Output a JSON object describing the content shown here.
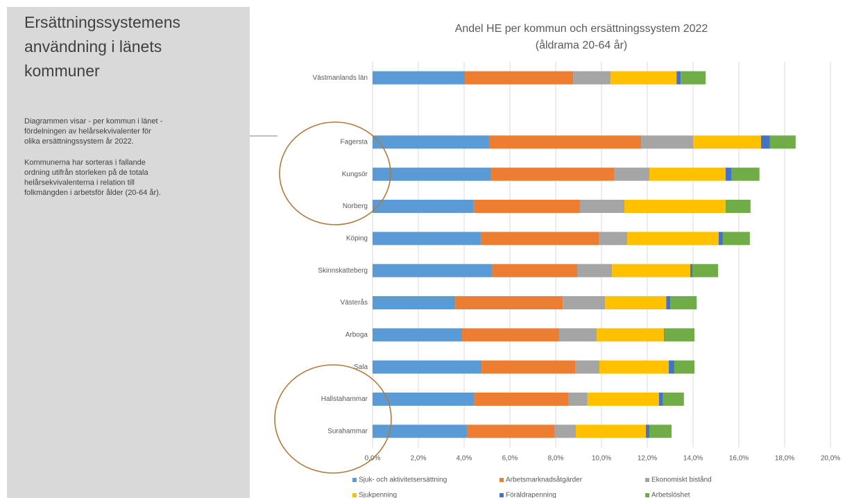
{
  "sidebar": {
    "title": [
      "Ersättningssystemens",
      "användning i länets",
      "kommuner"
    ],
    "paragraphs": [
      [
        "Diagrammen visar - per kommun i länet -",
        "fördelningen av helårsekvivalenter för",
        "olika ersättningssystem år 2022."
      ],
      [
        "Kommunerna har sorteras i fallande",
        "ordning utifrån storleken på de totala",
        "helårsekvivalenterna i relation till",
        "folkmängden i arbetsför ålder (20-64 år)."
      ]
    ]
  },
  "chart_data": {
    "type": "stacked_barh",
    "title": [
      "Andel HE per kommun och ersättningssystem 2022",
      "(åldrama 20-64 år)"
    ],
    "categories": [
      "Västmanlands län",
      null,
      "Fagersta",
      "Kungsör",
      "Norberg",
      "Köping",
      "Skinnskatteberg",
      "Västerås",
      "Arboga",
      "Sala",
      "Hallstahammar",
      "Surahammar"
    ],
    "series": [
      {
        "name": "Sjuk- och aktivitetsersättning",
        "color": "#5b9bd5",
        "values": [
          4.03,
          null,
          5.09,
          5.18,
          4.42,
          4.73,
          5.21,
          3.61,
          3.91,
          4.76,
          4.45,
          4.12
        ]
      },
      {
        "name": "Arbetsmarknadsåtgärder",
        "color": "#ed7d31",
        "values": [
          4.73,
          null,
          6.64,
          5.39,
          4.64,
          5.15,
          3.73,
          4.7,
          4.24,
          4.09,
          4.12,
          3.82
        ]
      },
      {
        "name": "Ekonomiskt bistånd",
        "color": "#a5a5a5",
        "values": [
          1.64,
          null,
          2.27,
          1.52,
          1.94,
          1.24,
          1.52,
          1.85,
          1.64,
          1.06,
          0.82,
          0.94
        ]
      },
      {
        "name": "Sjukpenning",
        "color": "#ffc000",
        "values": [
          2.88,
          null,
          2.97,
          3.33,
          4.42,
          4.0,
          3.42,
          2.67,
          2.94,
          3.03,
          3.12,
          3.06
        ]
      },
      {
        "name": "Föräldrapenning",
        "color": "#4472c4",
        "values": [
          0.18,
          null,
          0.39,
          0.27,
          0,
          0.18,
          0.09,
          0.18,
          0.03,
          0.24,
          0.18,
          0.15
        ]
      },
      {
        "name": "Arbetslöshet",
        "color": "#70ad47",
        "values": [
          1.09,
          null,
          1.12,
          1.21,
          1.09,
          1.18,
          1.12,
          1.15,
          1.3,
          0.88,
          0.91,
          0.97
        ]
      }
    ],
    "xlim": [
      0,
      20
    ],
    "xticks": [
      {
        "value": 0,
        "label": "0,0%"
      },
      {
        "value": 2,
        "label": "2,0%"
      },
      {
        "value": 4,
        "label": "4,0%"
      },
      {
        "value": 6,
        "label": "6,0%"
      },
      {
        "value": 8,
        "label": "8,0%"
      },
      {
        "value": 10,
        "label": "10,0%"
      },
      {
        "value": 12,
        "label": "12,0%"
      },
      {
        "value": 14,
        "label": "14,0%"
      },
      {
        "value": 16,
        "label": "16,0%"
      },
      {
        "value": 18,
        "label": "18,0%"
      },
      {
        "value": 20,
        "label": "20,0%"
      }
    ],
    "grid": true,
    "legend": "bottom"
  }
}
